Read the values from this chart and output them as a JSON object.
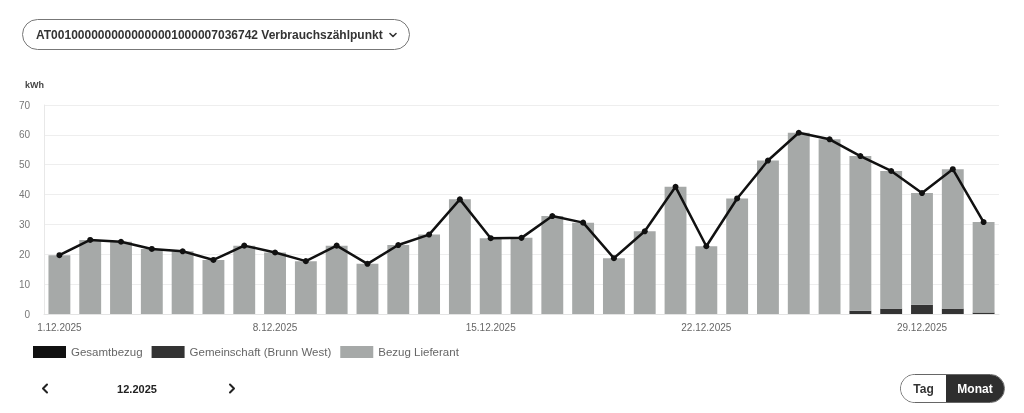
{
  "chart_data": {
    "type": "bar",
    "title": "AT0010000000000000001000007036742 Verbrauchszählpunkt",
    "ylabel": "kWh",
    "categories": [
      "1.12.2025",
      null,
      null,
      null,
      null,
      null,
      null,
      "8.12.2025",
      null,
      null,
      null,
      null,
      null,
      null,
      "15.12.2025",
      null,
      null,
      null,
      null,
      null,
      null,
      "22.12.2025",
      null,
      null,
      null,
      null,
      null,
      null,
      "29.12.2025",
      null,
      null
    ],
    "series": [
      {
        "name": "Gesamtbezug",
        "type": "line",
        "color": "#111111",
        "values": [
          19.7,
          24.8,
          24.2,
          21.8,
          21.0,
          18.1,
          22.9,
          20.6,
          17.7,
          22.9,
          16.8,
          23.1,
          26.6,
          38.4,
          25.4,
          25.5,
          32.8,
          30.6,
          18.7,
          27.7,
          42.6,
          22.7,
          38.7,
          51.4,
          60.7,
          58.5,
          52.9,
          47.9,
          40.5,
          48.5,
          30.8
        ]
      },
      {
        "name": "Gemeinschaft (Brunn West)",
        "color": "#333333",
        "values": [
          0,
          0,
          0,
          0,
          0,
          0,
          0,
          0,
          0,
          0,
          0,
          0,
          0,
          0,
          0,
          0,
          0,
          0,
          0,
          0,
          0,
          0,
          0,
          0,
          0,
          0,
          1.1,
          1.8,
          3.1,
          1.8,
          0.5
        ]
      },
      {
        "name": "Bezug Lieferant",
        "color": "#a6a9a8",
        "values": [
          19.7,
          24.8,
          24.2,
          21.8,
          21.0,
          18.1,
          22.9,
          20.6,
          17.7,
          22.9,
          16.8,
          23.1,
          26.6,
          38.4,
          25.4,
          25.5,
          32.8,
          30.6,
          18.7,
          27.7,
          42.6,
          22.7,
          38.7,
          51.4,
          60.7,
          58.5,
          51.8,
          46.1,
          37.4,
          46.7,
          30.3
        ]
      }
    ],
    "stacked": true,
    "ylim": [
      0,
      70
    ],
    "yticks": [
      0,
      10,
      20,
      30,
      40,
      50,
      60,
      70
    ],
    "grid": "y",
    "legend": "bottom left",
    "marker": "circle",
    "line_style": "solid",
    "annotations": [
      "12.2025",
      "Tag",
      "Monat"
    ]
  }
}
